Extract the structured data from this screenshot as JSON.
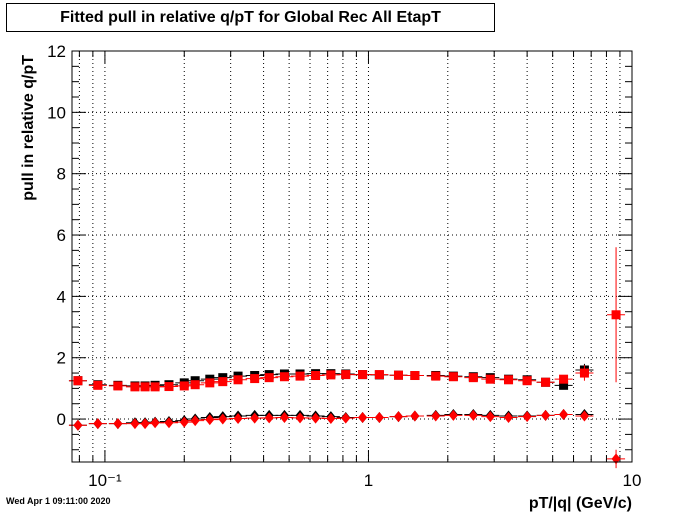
{
  "chart_data": {
    "type": "scatter",
    "title": "Fitted pull in relative q/pT for Global Rec All EtapT",
    "xlabel": "pT/|q| (GeV/c)",
    "ylabel": "pull in relative q/pT",
    "x_scale": "log",
    "xlim": [
      0.075,
      10
    ],
    "ylim": [
      -1.4,
      12
    ],
    "y_ticks": [
      0,
      2,
      4,
      6,
      8,
      10,
      12
    ],
    "x_tick_labels": [
      {
        "value": 0.1,
        "label": "10⁻¹"
      },
      {
        "value": 1,
        "label": "1"
      },
      {
        "value": 10,
        "label": "10"
      }
    ],
    "grid": true,
    "series": [
      {
        "marker": "square",
        "color": "#000000",
        "x": [
          0.079,
          0.094,
          0.112,
          0.13,
          0.142,
          0.155,
          0.175,
          0.2,
          0.22,
          0.25,
          0.28,
          0.32,
          0.37,
          0.42,
          0.48,
          0.55,
          0.63,
          0.72,
          0.82,
          0.95,
          1.1,
          1.3,
          1.5,
          1.8,
          2.1,
          2.5,
          2.9,
          3.4,
          4.0,
          4.7,
          5.5,
          6.6
        ],
        "y": [
          1.25,
          1.12,
          1.1,
          1.08,
          1.08,
          1.1,
          1.12,
          1.18,
          1.25,
          1.3,
          1.35,
          1.4,
          1.42,
          1.45,
          1.47,
          1.47,
          1.48,
          1.48,
          1.47,
          1.45,
          1.44,
          1.43,
          1.42,
          1.42,
          1.4,
          1.38,
          1.35,
          1.3,
          1.28,
          1.2,
          1.1,
          1.6
        ],
        "yerr": [
          0.08,
          0.05,
          0.04,
          0.04,
          0.04,
          0.03,
          0.03,
          0.03,
          0.03,
          0.03,
          0.03,
          0.03,
          0.03,
          0.03,
          0.03,
          0.03,
          0.03,
          0.03,
          0.03,
          0.03,
          0.03,
          0.03,
          0.03,
          0.03,
          0.03,
          0.04,
          0.05,
          0.06,
          0.07,
          0.09,
          0.12,
          0.2
        ]
      },
      {
        "marker": "square",
        "color": "#ff0000",
        "x": [
          0.079,
          0.094,
          0.112,
          0.13,
          0.142,
          0.155,
          0.175,
          0.2,
          0.22,
          0.25,
          0.28,
          0.32,
          0.37,
          0.42,
          0.48,
          0.55,
          0.63,
          0.72,
          0.82,
          0.95,
          1.1,
          1.3,
          1.5,
          1.8,
          2.1,
          2.5,
          2.9,
          3.4,
          4.0,
          4.7,
          5.5,
          6.6,
          8.7
        ],
        "y": [
          1.25,
          1.1,
          1.08,
          1.05,
          1.05,
          1.05,
          1.06,
          1.08,
          1.12,
          1.18,
          1.22,
          1.28,
          1.32,
          1.35,
          1.38,
          1.4,
          1.42,
          1.44,
          1.45,
          1.45,
          1.45,
          1.43,
          1.42,
          1.4,
          1.38,
          1.35,
          1.3,
          1.28,
          1.25,
          1.2,
          1.3,
          1.5,
          3.4
        ],
        "yerr": [
          0.08,
          0.05,
          0.04,
          0.04,
          0.04,
          0.03,
          0.03,
          0.03,
          0.03,
          0.03,
          0.03,
          0.03,
          0.03,
          0.03,
          0.03,
          0.03,
          0.03,
          0.03,
          0.03,
          0.03,
          0.03,
          0.03,
          0.03,
          0.03,
          0.03,
          0.04,
          0.05,
          0.06,
          0.07,
          0.09,
          0.12,
          0.25,
          2.2
        ]
      },
      {
        "marker": "diamond",
        "color": "#000000",
        "x": [
          0.079,
          0.094,
          0.112,
          0.13,
          0.142,
          0.155,
          0.175,
          0.2,
          0.22,
          0.25,
          0.28,
          0.32,
          0.37,
          0.42,
          0.48,
          0.55,
          0.63,
          0.72,
          0.82,
          0.95,
          1.1,
          1.3,
          1.5,
          1.8,
          2.1,
          2.5,
          2.9,
          3.4,
          4.0,
          4.7,
          5.5,
          6.6
        ],
        "y": [
          -0.2,
          -0.15,
          -0.15,
          -0.12,
          -0.12,
          -0.1,
          -0.08,
          -0.05,
          0.0,
          0.05,
          0.08,
          0.1,
          0.12,
          0.12,
          0.12,
          0.12,
          0.1,
          0.08,
          0.05,
          0.05,
          0.05,
          0.08,
          0.1,
          0.12,
          0.15,
          0.15,
          0.12,
          0.1,
          0.1,
          0.12,
          0.15,
          0.15
        ],
        "yerr": [
          0.05,
          0.04,
          0.03,
          0.03,
          0.03,
          0.03,
          0.03,
          0.03,
          0.03,
          0.03,
          0.03,
          0.03,
          0.03,
          0.03,
          0.03,
          0.03,
          0.03,
          0.03,
          0.03,
          0.03,
          0.03,
          0.03,
          0.03,
          0.03,
          0.03,
          0.03,
          0.04,
          0.05,
          0.05,
          0.06,
          0.08,
          0.1
        ]
      },
      {
        "marker": "diamond",
        "color": "#ff0000",
        "x": [
          0.079,
          0.094,
          0.112,
          0.13,
          0.142,
          0.155,
          0.175,
          0.2,
          0.22,
          0.25,
          0.28,
          0.32,
          0.37,
          0.42,
          0.48,
          0.55,
          0.63,
          0.72,
          0.82,
          0.95,
          1.1,
          1.3,
          1.5,
          1.8,
          2.1,
          2.5,
          2.9,
          3.4,
          4.0,
          4.7,
          5.5,
          6.6,
          8.7
        ],
        "y": [
          -0.2,
          -0.15,
          -0.15,
          -0.15,
          -0.15,
          -0.12,
          -0.12,
          -0.1,
          -0.05,
          -0.02,
          0.0,
          0.02,
          0.03,
          0.04,
          0.05,
          0.04,
          0.03,
          0.02,
          0.03,
          0.05,
          0.05,
          0.08,
          0.1,
          0.1,
          0.12,
          0.12,
          0.08,
          0.05,
          0.08,
          0.12,
          0.15,
          0.1,
          -1.3
        ],
        "yerr": [
          0.05,
          0.04,
          0.03,
          0.03,
          0.03,
          0.03,
          0.03,
          0.03,
          0.03,
          0.03,
          0.03,
          0.03,
          0.03,
          0.03,
          0.03,
          0.03,
          0.03,
          0.03,
          0.03,
          0.03,
          0.03,
          0.03,
          0.03,
          0.03,
          0.03,
          0.03,
          0.04,
          0.05,
          0.05,
          0.06,
          0.08,
          0.12,
          0.3
        ]
      }
    ]
  },
  "footer": {
    "timestamp": "Wed Apr  1 09:11:00 2020"
  }
}
